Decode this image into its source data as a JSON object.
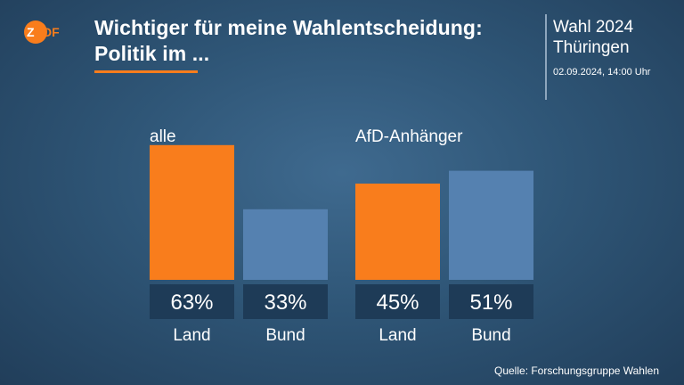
{
  "header": {
    "logo_text": "ZDF",
    "title_line1": "Wichtiger für meine Wahlentscheidung:",
    "title_line2": "Politik im ...",
    "election_line1": "Wahl 2024",
    "election_line2": "Thüringen",
    "date": "02.09.2024, 14:00 Uhr"
  },
  "source": "Quelle: Forschungsgruppe Wahlen",
  "colors": {
    "accent": "#f97d1c",
    "secondary": "#5581b0",
    "label_box": "#1e3b57"
  },
  "chart_data": {
    "type": "bar",
    "ylim": [
      0,
      100
    ],
    "unit": "%",
    "groups": [
      {
        "name": "alle",
        "categories": [
          "Land",
          "Bund"
        ],
        "values": [
          63,
          33
        ]
      },
      {
        "name": "AfD-Anhänger",
        "categories": [
          "Land",
          "Bund"
        ],
        "values": [
          45,
          51
        ]
      }
    ]
  }
}
